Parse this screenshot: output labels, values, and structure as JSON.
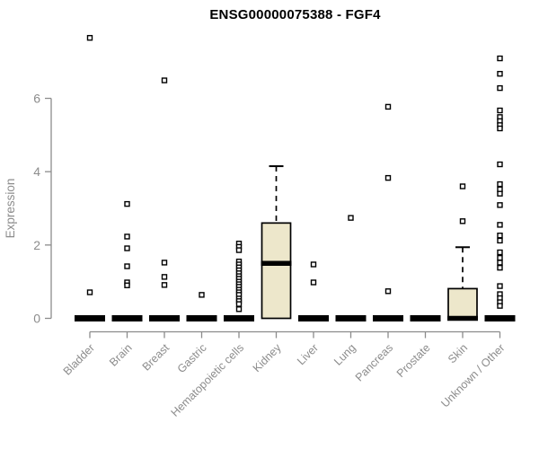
{
  "title": "ENSG00000075388 - FGF4",
  "chart_data": {
    "type": "boxplot",
    "title": "ENSG00000075388 - FGF4",
    "xlabel": "",
    "ylabel": "Expression",
    "ylim": [
      0,
      6
    ],
    "yticks": [
      0,
      2,
      4,
      6
    ],
    "grid": false,
    "legend_position": "none",
    "colors": {
      "box_fill": "#ede7cb",
      "box_stroke": "#000000",
      "median": "#000000",
      "whisker": "#000000",
      "outlier_fill": "#ffffff",
      "outlier_stroke": "#000000",
      "axis": "#8c8c8c",
      "title": "#000000"
    },
    "categories": [
      "Bladder",
      "Brain",
      "Breast",
      "Gastric",
      "Hematopoietic cells",
      "Kidney",
      "Liver",
      "Lung",
      "Pancreas",
      "Prostate",
      "Skin",
      "Unknown / Other"
    ],
    "series": [
      {
        "label": "Bladder",
        "box": {
          "q1": 0,
          "median": 0,
          "q3": 0,
          "whisker_low": 0,
          "whisker_high": 0
        },
        "outliers": [
          7.65,
          0.71
        ]
      },
      {
        "label": "Brain",
        "box": {
          "q1": 0,
          "median": 0,
          "q3": 0,
          "whisker_low": 0,
          "whisker_high": 0
        },
        "outliers": [
          3.12,
          2.23,
          1.91,
          1.42,
          0.98,
          0.9
        ]
      },
      {
        "label": "Breast",
        "box": {
          "q1": 0,
          "median": 0,
          "q3": 0,
          "whisker_low": 0,
          "whisker_high": 0
        },
        "outliers": [
          6.49,
          1.52,
          1.13,
          0.91
        ]
      },
      {
        "label": "Gastric",
        "box": {
          "q1": 0,
          "median": 0,
          "q3": 0,
          "whisker_low": 0,
          "whisker_high": 0
        },
        "outliers": [
          0.64
        ]
      },
      {
        "label": "Hematopoietic cells",
        "box": {
          "q1": 0,
          "median": 0,
          "q3": 0,
          "whisker_low": 0,
          "whisker_high": 0
        },
        "outliers": [
          2.04,
          1.95,
          1.86,
          1.55,
          1.47,
          1.39,
          1.31,
          1.23,
          1.15,
          1.08,
          1.0,
          0.93,
          0.86,
          0.78,
          0.71,
          0.64,
          0.54,
          0.47,
          0.39,
          0.25
        ]
      },
      {
        "label": "Kidney",
        "box": {
          "q1": 0,
          "median": 1.5,
          "q3": 2.6,
          "whisker_low": 0,
          "whisker_high": 4.15
        },
        "outliers": []
      },
      {
        "label": "Liver",
        "box": {
          "q1": 0,
          "median": 0,
          "q3": 0,
          "whisker_low": 0,
          "whisker_high": 0
        },
        "outliers": [
          1.47,
          0.98
        ]
      },
      {
        "label": "Lung",
        "box": {
          "q1": 0,
          "median": 0,
          "q3": 0,
          "whisker_low": 0,
          "whisker_high": 0
        },
        "outliers": [
          2.74
        ]
      },
      {
        "label": "Pancreas",
        "box": {
          "q1": 0,
          "median": 0,
          "q3": 0,
          "whisker_low": 0,
          "whisker_high": 0
        },
        "outliers": [
          5.77,
          3.83,
          0.74
        ]
      },
      {
        "label": "Prostate",
        "box": {
          "q1": 0,
          "median": 0,
          "q3": 0,
          "whisker_low": 0,
          "whisker_high": 0
        },
        "outliers": []
      },
      {
        "label": "Skin",
        "box": {
          "q1": 0,
          "median": 0,
          "q3": 0.81,
          "whisker_low": 0,
          "whisker_high": 1.94
        },
        "outliers": [
          3.6,
          2.65
        ]
      },
      {
        "label": "Unknown / Other",
        "box": {
          "q1": 0,
          "median": 0,
          "q3": 0,
          "whisker_low": 0,
          "whisker_high": 0
        },
        "outliers": [
          7.09,
          6.67,
          6.28,
          5.67,
          5.49,
          5.38,
          5.27,
          5.18,
          4.2,
          3.66,
          3.52,
          3.4,
          3.09,
          2.55,
          2.26,
          2.12,
          1.8,
          1.65,
          1.52,
          1.38,
          0.88,
          0.66,
          0.55,
          0.44,
          0.34
        ]
      }
    ]
  }
}
